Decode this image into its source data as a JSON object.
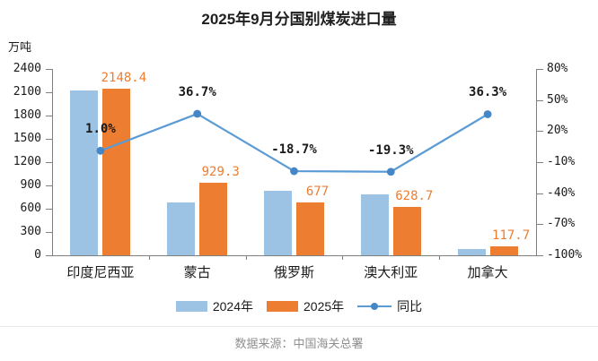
{
  "title": "2025年9月分国别煤炭进口量",
  "axis_unit": "万吨",
  "source": "数据来源：中国海关总署",
  "colors": {
    "bar_2024": "#9CC3E3",
    "bar_2025": "#ED7D31",
    "line": "#5B9BD5",
    "marker": "#4586C6",
    "axis": "#7f7f7f",
    "value_label": "#ED7D31",
    "pct_label": "#1a1a1a"
  },
  "legend": {
    "items": [
      {
        "label": "2024年",
        "swatch": "bar",
        "color": "#9CC3E3"
      },
      {
        "label": "2025年",
        "swatch": "bar",
        "color": "#ED7D31"
      },
      {
        "label": "同比",
        "swatch": "line",
        "color": "#5B9BD5"
      }
    ]
  },
  "chart_data": {
    "type": "bar",
    "combo": "bar+line",
    "title": "2025年9月分国别煤炭进口量",
    "categories": [
      "印度尼西亚",
      "蒙古",
      "俄罗斯",
      "澳大利亚",
      "加拿大"
    ],
    "bar_series": [
      {
        "name": "2024年",
        "color": "#9CC3E3",
        "values": [
          2127,
          680,
          833,
          779,
          86
        ],
        "labels_shown": false
      },
      {
        "name": "2025年",
        "color": "#ED7D31",
        "values": [
          2148.4,
          929.3,
          677,
          628.7,
          117.7
        ],
        "labels_shown": true,
        "data_labels": [
          "2148.4",
          "929.3",
          "677",
          "628.7",
          "117.7"
        ],
        "label_color": "#ED7D31"
      }
    ],
    "line_series": {
      "name": "同比",
      "axis": "right",
      "color": "#5B9BD5",
      "marker_color": "#4586C6",
      "values": [
        1.0,
        36.7,
        -18.7,
        -19.3,
        36.3
      ],
      "data_labels": [
        "1.0%",
        "36.7%",
        "-18.7%",
        "-19.3%",
        "36.3%"
      ]
    },
    "left_axis": {
      "unit": "万吨",
      "min": 0,
      "max": 2400,
      "step": 300,
      "tick_labels": [
        "0",
        "300",
        "600",
        "900",
        "1200",
        "1500",
        "1800",
        "2100",
        "2400"
      ]
    },
    "right_axis": {
      "min": -100,
      "max": 80,
      "step": 30,
      "tick_labels_top_down": [
        "80%",
        "50%",
        "20%",
        "-10%",
        "-40%",
        "-70%",
        "-100%"
      ]
    },
    "grid": false,
    "legend_position": "bottom"
  }
}
